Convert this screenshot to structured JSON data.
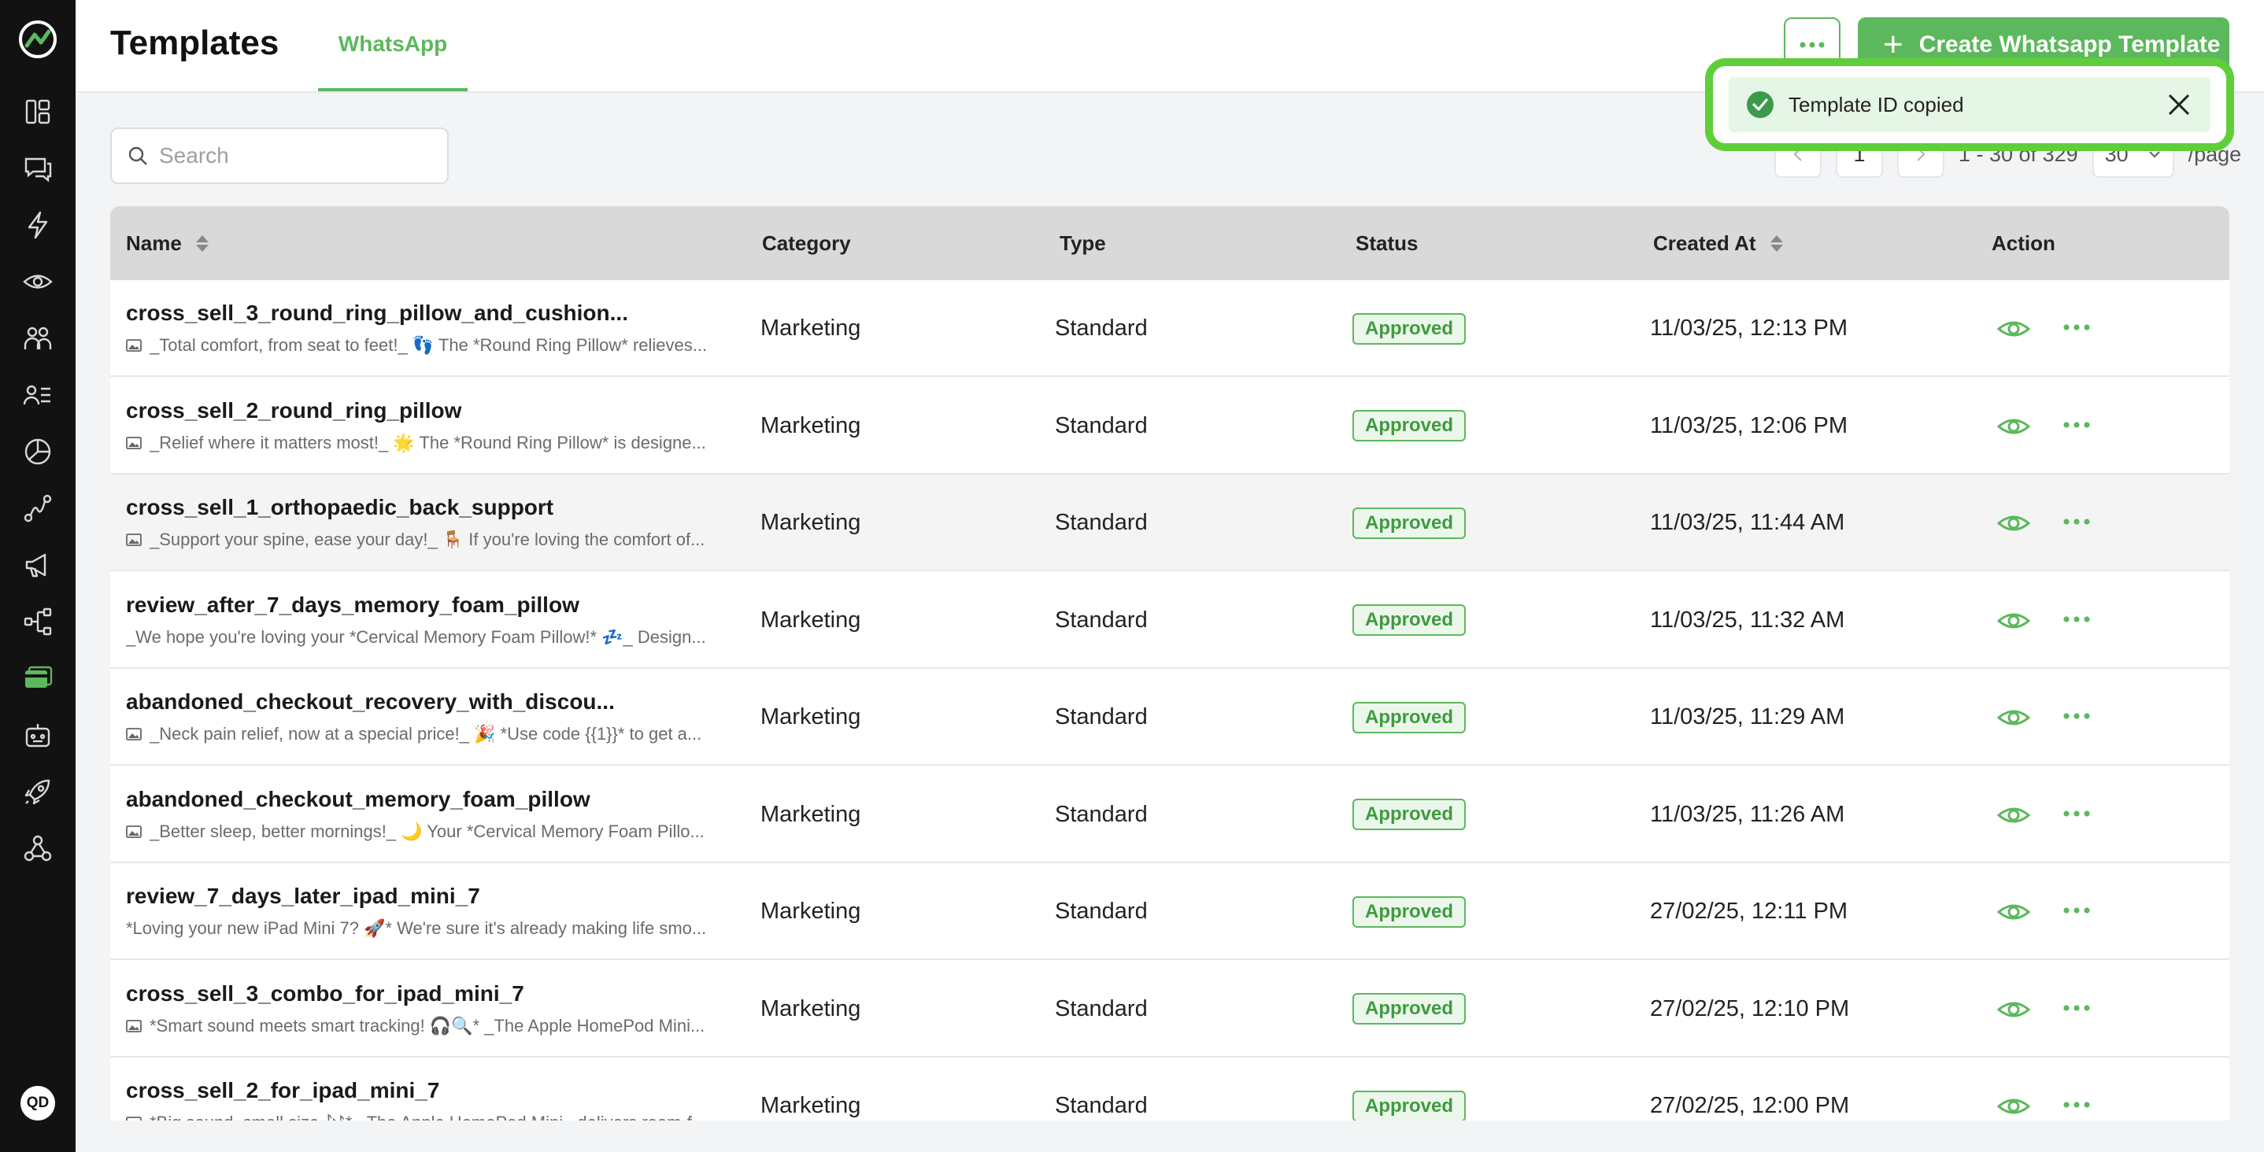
{
  "header": {
    "title": "Templates",
    "active_tab": "WhatsApp",
    "more_icon": "ellipsis-icon",
    "create_label": "Create Whatsapp Template"
  },
  "search": {
    "placeholder": "Search"
  },
  "pagination": {
    "page": "1",
    "range": "1 - 30 of 329",
    "page_size": "30",
    "per_page": "/page"
  },
  "table": {
    "columns": [
      "Name",
      "Category",
      "Type",
      "Status",
      "Created At",
      "Action"
    ],
    "rows": [
      {
        "name": "cross_sell_3_round_ring_pillow_and_cushion...",
        "preview": "_Total comfort, from seat to feet!_ 👣 The *Round Ring Pillow* relieves...",
        "has_image": true,
        "category": "Marketing",
        "type": "Standard",
        "status": "Approved",
        "created_at": "11/03/25, 12:13 PM"
      },
      {
        "name": "cross_sell_2_round_ring_pillow",
        "preview": "_Relief where it matters most!_ 🌟 The *Round Ring Pillow* is designe...",
        "has_image": true,
        "category": "Marketing",
        "type": "Standard",
        "status": "Approved",
        "created_at": "11/03/25, 12:06 PM"
      },
      {
        "name": "cross_sell_1_orthopaedic_back_support",
        "preview": "_Support your spine, ease your day!_ 🪑 If you're loving the comfort of...",
        "has_image": true,
        "category": "Marketing",
        "type": "Standard",
        "status": "Approved",
        "created_at": "11/03/25, 11:44 AM"
      },
      {
        "name": "review_after_7_days_memory_foam_pillow",
        "preview": "_We hope you're loving your *Cervical Memory Foam Pillow!* 💤_ Design...",
        "has_image": false,
        "category": "Marketing",
        "type": "Standard",
        "status": "Approved",
        "created_at": "11/03/25, 11:32 AM"
      },
      {
        "name": "abandoned_checkout_recovery_with_discou...",
        "preview": "_Neck pain relief, now at a special price!_ 🎉 *Use code {{1}}* to get a...",
        "has_image": true,
        "category": "Marketing",
        "type": "Standard",
        "status": "Approved",
        "created_at": "11/03/25, 11:29 AM"
      },
      {
        "name": "abandoned_checkout_memory_foam_pillow",
        "preview": "_Better sleep, better mornings!_ 🌙 Your *Cervical Memory Foam Pillo...",
        "has_image": true,
        "category": "Marketing",
        "type": "Standard",
        "status": "Approved",
        "created_at": "11/03/25, 11:26 AM"
      },
      {
        "name": "review_7_days_later_ipad_mini_7",
        "preview": "*Loving your new iPad Mini 7? 🚀* We're sure it's already making life smo...",
        "has_image": false,
        "category": "Marketing",
        "type": "Standard",
        "status": "Approved",
        "created_at": "27/02/25, 12:11 PM"
      },
      {
        "name": "cross_sell_3_combo_for_ipad_mini_7",
        "preview": "*Smart sound meets smart tracking! 🎧🔍* _The Apple HomePod Mini...",
        "has_image": true,
        "category": "Marketing",
        "type": "Standard",
        "status": "Approved",
        "created_at": "27/02/25, 12:10 PM"
      },
      {
        "name": "cross_sell_2_for_ipad_mini_7",
        "preview": "*Big sound, small size 🎶* _The Apple HomePod Mini_ delivers room-f...",
        "has_image": true,
        "category": "Marketing",
        "type": "Standard",
        "status": "Approved",
        "created_at": "27/02/25, 12:00 PM"
      }
    ]
  },
  "toast": {
    "message": "Template ID copied"
  },
  "user": {
    "initials": "QD"
  },
  "sidebar": {
    "icons": [
      "dashboard-icon",
      "chat-icon",
      "lightning-icon",
      "eye-icon",
      "team-icon",
      "contacts-icon",
      "analytics-icon",
      "flow-icon",
      "megaphone-icon",
      "integration-icon",
      "templates-icon",
      "bot-icon",
      "rocket-icon",
      "webhook-icon"
    ]
  },
  "colors": {
    "accent": "#5cb85c",
    "sidebar_bg": "#121212",
    "toast_highlight": "#5ecf3a"
  }
}
